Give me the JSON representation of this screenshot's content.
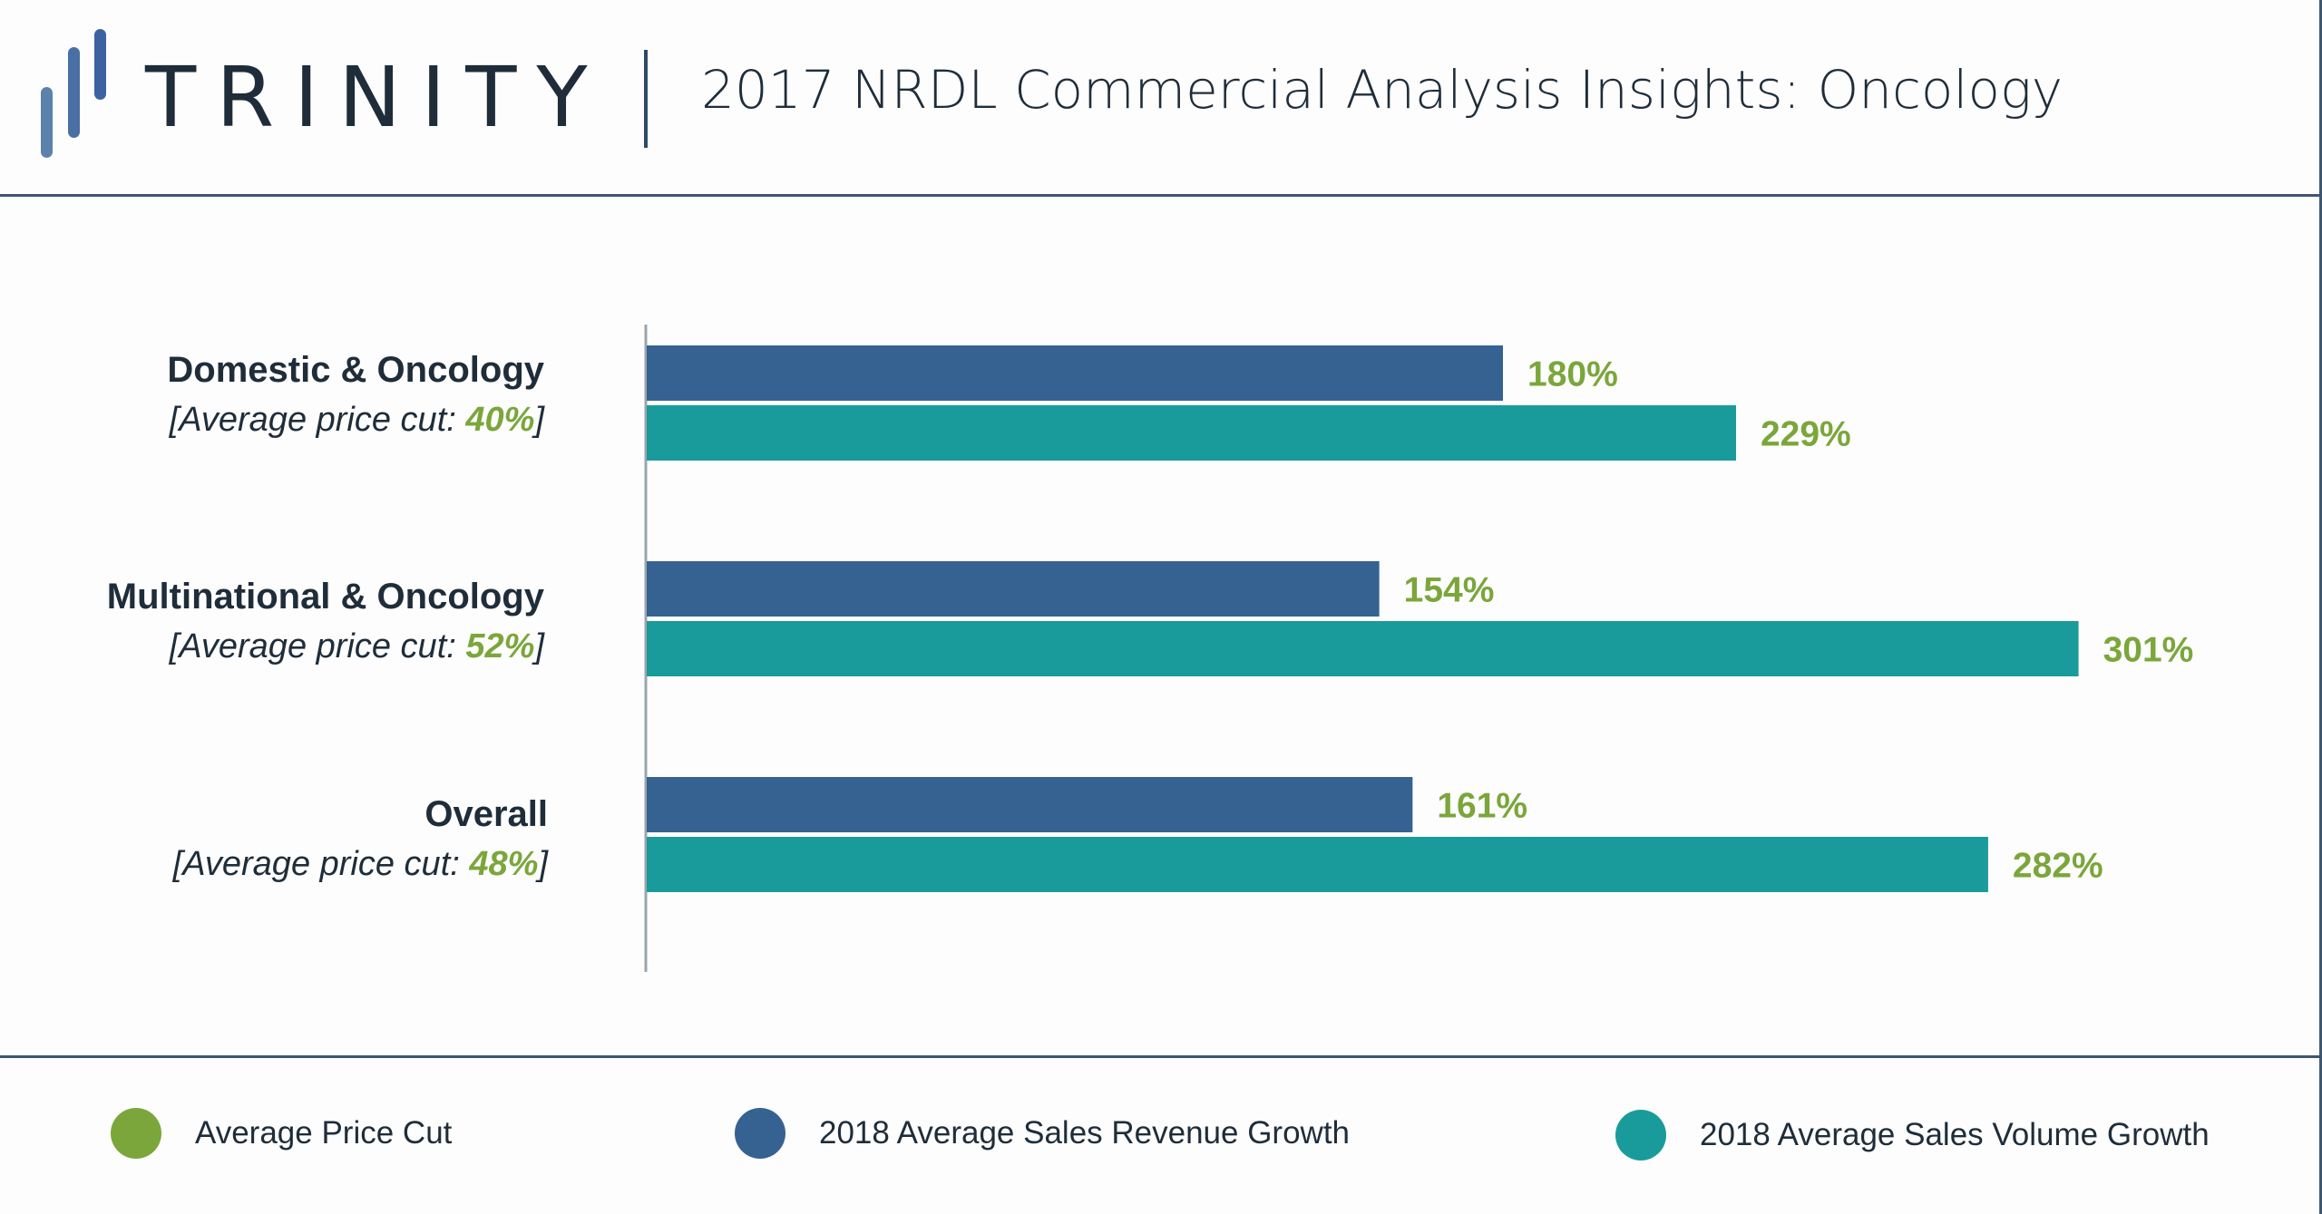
{
  "header": {
    "brand": "TRINITY",
    "title": "2017 NRDL Commercial Analysis Insights: Oncology"
  },
  "colors": {
    "revenue": "#356291",
    "volume": "#1a9b9b",
    "price_cut": "#7ba63b",
    "text": "#1f2d3a",
    "logo_light": "#5b82aa",
    "logo_dark": "#3c62a0"
  },
  "categories": [
    {
      "name": "Domestic & Oncology",
      "sub_prefix": "[Average price cut: ",
      "price_cut": "40%",
      "sub_suffix": "]"
    },
    {
      "name": "Multinational & Oncology",
      "sub_prefix": "[Average price cut: ",
      "price_cut": "52%",
      "sub_suffix": "]"
    },
    {
      "name": "Overall",
      "sub_prefix": "[Average price cut: ",
      "price_cut": "48%",
      "sub_suffix": "]"
    }
  ],
  "legend": [
    {
      "label": "Average Price Cut",
      "color": "#7ba63b"
    },
    {
      "label": "2018 Average Sales Revenue Growth",
      "color": "#356291"
    },
    {
      "label": "2018 Average Sales Volume Growth",
      "color": "#1a9b9b"
    }
  ],
  "chart_data": {
    "type": "bar",
    "orientation": "horizontal",
    "title": "2017 NRDL Commercial Analysis Insights: Oncology",
    "categories": [
      "Domestic & Oncology",
      "Multinational & Oncology",
      "Overall"
    ],
    "series": [
      {
        "name": "2018 Average Sales Revenue Growth",
        "values": [
          180,
          154,
          161
        ],
        "labels": [
          "180%",
          "154%",
          "161%"
        ],
        "color": "#356291"
      },
      {
        "name": "2018 Average Sales Volume Growth",
        "values": [
          229,
          301,
          282
        ],
        "labels": [
          "229%",
          "301%",
          "282%"
        ],
        "color": "#1a9b9b"
      }
    ],
    "average_price_cut": {
      "values": [
        40,
        52,
        48
      ],
      "labels": [
        "40%",
        "52%",
        "48%"
      ],
      "color": "#7ba63b"
    },
    "xlabel": "",
    "ylabel": "",
    "xlim": [
      0,
      320
    ],
    "grid": false,
    "legend_position": "bottom"
  }
}
